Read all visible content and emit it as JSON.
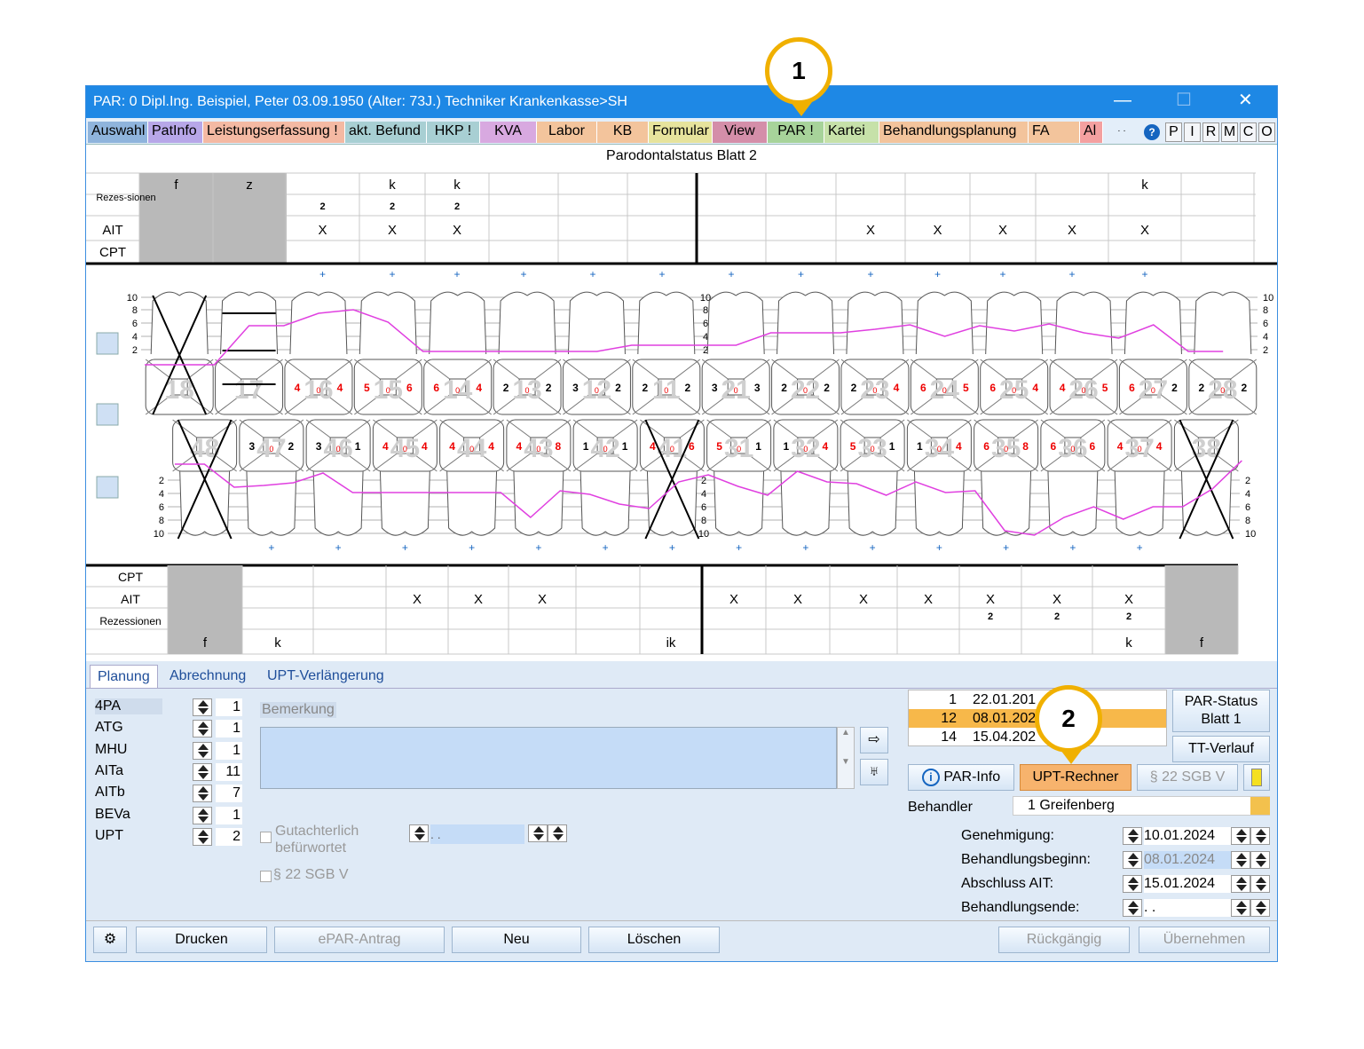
{
  "window": {
    "title": "PAR: 0  Dipl.Ing. Beispiel, Peter  03.09.1950 (Alter: 73J.)  Techniker Krankenkasse>SH",
    "min": "—",
    "max": "☐",
    "close": "✕"
  },
  "tabs": [
    {
      "label": "Auswahl",
      "color": "#8fb4dc"
    },
    {
      "label": "PatInfo",
      "color": "#b7a7e8"
    },
    {
      "label": "Leistungserfassung !",
      "color": "#f4b9a3"
    },
    {
      "label": "akt. Befund",
      "color": "#a8cfd3"
    },
    {
      "label": "HKP !",
      "color": "#a8cfd3"
    },
    {
      "label": "KVA",
      "color": "#d8a9e0"
    },
    {
      "label": "Labor",
      "color": "#f3c49c"
    },
    {
      "label": "KB",
      "color": "#f3c49c"
    },
    {
      "label": "Formular",
      "color": "#e6e39c"
    },
    {
      "label": "View",
      "color": "#d48ea9"
    },
    {
      "label": "PAR !",
      "color": "#a7d39a"
    },
    {
      "label": "Kartei",
      "color": "#c6e1a9"
    },
    {
      "label": "Behandlungsplanung",
      "color": "#f3c49c"
    },
    {
      "label": "FA",
      "color": "#f3c49c"
    },
    {
      "label": "Al",
      "color": "#f4a0a0"
    }
  ],
  "right_buttons": [
    "P",
    "I",
    "R",
    "M",
    "C",
    "O"
  ],
  "sheet_title": "Parodontalstatus Blatt 2",
  "upper_table": {
    "rows": [
      "",
      "Rezes-\nsionen",
      "AIT",
      "CPT"
    ],
    "row_labels": [
      "Rezes-sionen",
      "AIT",
      "CPT"
    ],
    "top": [
      "f",
      "z",
      "",
      "k",
      "k",
      "",
      "",
      "",
      "",
      "",
      "",
      "",
      "",
      "",
      "k",
      ""
    ],
    "rez": [
      "",
      "",
      "2",
      "2",
      "2",
      "",
      "",
      "",
      "",
      "",
      "",
      "",
      "",
      "",
      "",
      ""
    ],
    "ait": [
      "",
      "",
      "X",
      "X",
      "X",
      "",
      "",
      "",
      "",
      "",
      "X",
      "X",
      "X",
      "X",
      "X",
      ""
    ]
  },
  "lower_table": {
    "row_labels": [
      "CPT",
      "AIT",
      "Rezessionen",
      ""
    ],
    "ait": [
      "",
      "",
      "",
      "X",
      "X",
      "X",
      "",
      "",
      "X",
      "X",
      "X",
      "X",
      "X",
      "X",
      "X",
      ""
    ],
    "rez": [
      "",
      "",
      "",
      "",
      "",
      "",
      "",
      "",
      "",
      "",
      "",
      "",
      "2",
      "2",
      "2",
      ""
    ],
    "bottom": [
      "f",
      "k",
      "",
      "",
      "",
      "",
      "",
      "ik",
      "",
      "",
      "",
      "",
      "",
      "",
      "k",
      "f"
    ]
  },
  "upper_teeth": [
    "18",
    "17",
    "16",
    "15",
    "14",
    "13",
    "12",
    "11",
    "21",
    "22",
    "23",
    "24",
    "25",
    "26",
    "27",
    "28"
  ],
  "lower_teeth": [
    "48",
    "47",
    "46",
    "45",
    "44",
    "43",
    "42",
    "41",
    "31",
    "32",
    "33",
    "34",
    "35",
    "36",
    "37",
    "38"
  ],
  "upper_pockets": [
    [
      "",
      ""
    ],
    [
      "",
      ""
    ],
    [
      "4",
      "4"
    ],
    [
      "5",
      "6"
    ],
    [
      "6",
      "4"
    ],
    [
      "2",
      "2"
    ],
    [
      "3",
      "2"
    ],
    [
      "2",
      "2"
    ],
    [
      "3",
      "3"
    ],
    [
      "2",
      "2"
    ],
    [
      "2",
      "4"
    ],
    [
      "6",
      "5"
    ],
    [
      "6",
      "4"
    ],
    [
      "4",
      "5"
    ],
    [
      "6",
      "2"
    ],
    [
      "2",
      "2"
    ]
  ],
  "lower_pockets": [
    [
      "",
      ""
    ],
    [
      "3",
      "2"
    ],
    [
      "3",
      "1"
    ],
    [
      "4",
      "4"
    ],
    [
      "4",
      "4"
    ],
    [
      "4",
      "8"
    ],
    [
      "1",
      "1"
    ],
    [
      "4",
      "6"
    ],
    [
      "5",
      "1"
    ],
    [
      "1",
      "4"
    ],
    [
      "5",
      "1"
    ],
    [
      "1",
      "4"
    ],
    [
      "6",
      "8"
    ],
    [
      "6",
      "6"
    ],
    [
      "4",
      "4"
    ],
    [
      "",
      ""
    ]
  ],
  "scale_upper": [
    "10",
    "8",
    "6",
    "4",
    "2"
  ],
  "scale_lower": [
    "2",
    "4",
    "6",
    "8",
    "10"
  ],
  "lower_tabs": [
    "Planung",
    "Abrechnung",
    "UPT-Verlängerung"
  ],
  "counters": [
    {
      "name": "4PA",
      "value": "1"
    },
    {
      "name": "ATG",
      "value": "1"
    },
    {
      "name": "MHU",
      "value": "1"
    },
    {
      "name": "AITa",
      "value": "11"
    },
    {
      "name": "AITb",
      "value": "7"
    },
    {
      "name": "BEVa",
      "value": "1"
    },
    {
      "name": "UPT",
      "value": "2"
    }
  ],
  "bemerkung_label": "Bemerkung",
  "gutachter_label": "Gutachterlich\nbefürwortet",
  "gutachter_line1": "Gutachterlich",
  "gutachter_line2": "befürwortet",
  "gutachter_date": "  .   .",
  "sgb_check": "§ 22 SGB V",
  "list": [
    {
      "num": "1",
      "date": "22.01.201"
    },
    {
      "num": "12",
      "date": "08.01.202"
    },
    {
      "num": "14",
      "date": "15.04.202"
    }
  ],
  "par_status": "PAR-Status\nBlatt 1",
  "par_status_l1": "PAR-Status",
  "par_status_l2": "Blatt 1",
  "tt_verlauf": "TT-Verlauf",
  "par_info": "PAR-Info",
  "upt_rechner": "UPT-Rechner",
  "sgb_button": "§ 22 SGB V",
  "behandler_label": "Behandler",
  "behandler_value": "1 Greifenberg",
  "dates": [
    {
      "label": "Genehmigung:",
      "value": "10.01.2024"
    },
    {
      "label": "Behandlungsbeginn:",
      "value": "08.01.2024"
    },
    {
      "label": "Abschluss AIT:",
      "value": "15.01.2024"
    },
    {
      "label": "Behandlungsende:",
      "value": " .   ."
    }
  ],
  "bottom_buttons": {
    "drucken": "Drucken",
    "epar": "ePAR-Antrag",
    "neu": "Neu",
    "loeschen": "Löschen",
    "rueck": "Rückgängig",
    "uebernehmen": "Übernehmen"
  },
  "callouts": [
    "1",
    "2"
  ]
}
